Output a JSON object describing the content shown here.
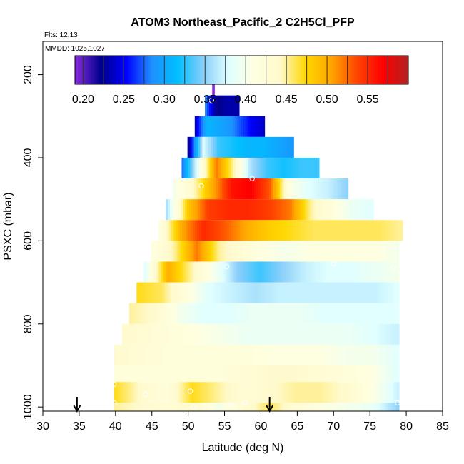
{
  "chart_data": {
    "type": "heatmap",
    "title": "ATOM3 Northeast_Pacific_2 C2H5Cl_PFP",
    "flights_label": "Flts: 12,13",
    "mmdd_label": "MMDD: 1025,1027",
    "xlabel": "Latitude (deg N)",
    "ylabel": "PSXC (mbar)",
    "xlim": [
      30,
      85
    ],
    "ylim": [
      1010,
      120
    ],
    "x_ticks": [
      "30",
      "35",
      "40",
      "45",
      "50",
      "55",
      "60",
      "65",
      "70",
      "75",
      "80",
      "85"
    ],
    "y_ticks": [
      "200",
      "400",
      "600",
      "800",
      "1000"
    ],
    "colorbar": {
      "range": [
        0.19,
        0.6
      ],
      "tick_labels": [
        "0.20",
        "0.25",
        "0.30",
        "0.35",
        "0.40",
        "0.45",
        "0.50",
        "0.55"
      ],
      "colors": [
        "#8a2be2",
        "#00008b",
        "#0000ff",
        "#1e90ff",
        "#00bfff",
        "#87cefa",
        "#e0ffff",
        "#ffffe0",
        "#fffacd",
        "#ffd700",
        "#ffa500",
        "#ff4500",
        "#ff0000",
        "#b22222"
      ]
    },
    "bands": [
      {
        "p0": 220,
        "p1": 250,
        "lat0": 53.3,
        "lat1": 53.6,
        "values": [
          0.19
        ]
      },
      {
        "p0": 250,
        "p1": 300,
        "lat0": 52.3,
        "lat1": 57.0,
        "values": [
          0.28,
          0.22,
          0.23,
          0.23
        ]
      },
      {
        "p0": 300,
        "p1": 350,
        "lat0": 50.9,
        "lat1": 60.5,
        "values": [
          0.24,
          0.31,
          0.3,
          0.29,
          0.27,
          0.25,
          0.24
        ]
      },
      {
        "p0": 350,
        "p1": 400,
        "lat0": 49.9,
        "lat1": 64.5,
        "values": [
          0.22,
          0.38,
          0.33,
          0.32,
          0.31,
          0.31,
          0.3,
          0.29
        ]
      },
      {
        "p0": 400,
        "p1": 450,
        "lat0": 49.1,
        "lat1": 68.0,
        "values": [
          0.28,
          0.4,
          0.52,
          0.45,
          0.36,
          0.33,
          0.32,
          0.33,
          0.33
        ]
      },
      {
        "p0": 450,
        "p1": 500,
        "lat0": 47.9,
        "lat1": 72.0,
        "values": [
          0.4,
          0.44,
          0.5,
          0.56,
          0.57,
          0.53,
          0.41,
          0.38,
          0.37,
          0.35
        ]
      },
      {
        "p0": 500,
        "p1": 550,
        "lat0": 46.9,
        "lat1": 75.5,
        "values": [
          0.36,
          0.48,
          0.54,
          0.55,
          0.55,
          0.54,
          0.52,
          0.45,
          0.42,
          0.39,
          0.38
        ]
      },
      {
        "p0": 550,
        "p1": 600,
        "lat0": 45.9,
        "lat1": 79.5,
        "values": [
          0.41,
          0.5,
          0.55,
          0.53,
          0.5,
          0.48,
          0.47,
          0.46,
          0.46,
          0.46,
          0.46,
          0.45
        ]
      },
      {
        "p0": 600,
        "p1": 650,
        "lat0": 44.9,
        "lat1": 79.0,
        "values": [
          0.41,
          0.45,
          0.52,
          0.45,
          0.43,
          0.41,
          0.4,
          0.41,
          0.41,
          0.41,
          0.41,
          0.4
        ]
      },
      {
        "p0": 650,
        "p1": 700,
        "lat0": 43.9,
        "lat1": 79.0,
        "values": [
          0.38,
          0.5,
          0.45,
          0.4,
          0.35,
          0.33,
          0.35,
          0.37,
          0.38,
          0.38,
          0.39,
          0.4
        ]
      },
      {
        "p0": 700,
        "p1": 750,
        "lat0": 42.9,
        "lat1": 79.0,
        "values": [
          0.47,
          0.46,
          0.42,
          0.38,
          0.37,
          0.36,
          0.37,
          0.37,
          0.37,
          0.37,
          0.37,
          0.38
        ]
      },
      {
        "p0": 750,
        "p1": 800,
        "lat0": 41.9,
        "lat1": 79.0,
        "values": [
          0.45,
          0.44,
          0.4,
          0.38,
          0.38,
          0.39,
          0.39,
          0.39,
          0.38,
          0.38,
          0.38,
          0.38
        ]
      },
      {
        "p0": 800,
        "p1": 850,
        "lat0": 40.9,
        "lat1": 79.0,
        "values": [
          0.44,
          0.43,
          0.42,
          0.41,
          0.4,
          0.39,
          0.39,
          0.39,
          0.39,
          0.39,
          0.38,
          0.37
        ]
      },
      {
        "p0": 850,
        "p1": 900,
        "lat0": 39.8,
        "lat1": 79.0,
        "values": [
          0.44,
          0.43,
          0.42,
          0.42,
          0.42,
          0.42,
          0.41,
          0.41,
          0.41,
          0.4,
          0.4,
          0.38
        ]
      },
      {
        "p0": 900,
        "p1": 940,
        "lat0": 39.8,
        "lat1": 79.0,
        "values": [
          0.42,
          0.42,
          0.42,
          0.42,
          0.42,
          0.43,
          0.44,
          0.44,
          0.43,
          0.42,
          0.41,
          0.38
        ]
      },
      {
        "p0": 940,
        "p1": 990,
        "lat0": 39.8,
        "lat1": 79.0,
        "values": [
          0.47,
          0.44,
          0.42,
          0.47,
          0.45,
          0.43,
          0.44,
          0.45,
          0.45,
          0.44,
          0.41,
          0.37
        ]
      },
      {
        "p0": 990,
        "p1": 1010,
        "lat0": 39.8,
        "lat1": 79.0,
        "values": [
          0.45,
          0.44,
          0.43,
          0.44,
          0.4,
          0.43,
          0.46,
          0.43,
          0.41,
          0.4,
          0.39,
          0.35
        ]
      }
    ],
    "points": [
      {
        "lat": 53.2,
        "p": 262
      },
      {
        "lat": 51.8,
        "p": 468
      },
      {
        "lat": 58.8,
        "p": 450
      },
      {
        "lat": 55.3,
        "p": 662
      },
      {
        "lat": 70.0,
        "p": 655
      },
      {
        "lat": 78.2,
        "p": 665
      },
      {
        "lat": 39.8,
        "p": 945
      },
      {
        "lat": 44.1,
        "p": 970
      },
      {
        "lat": 50.3,
        "p": 962
      },
      {
        "lat": 39.8,
        "p": 990
      },
      {
        "lat": 50.7,
        "p": 1000
      },
      {
        "lat": 56.0,
        "p": 995
      },
      {
        "lat": 57.8,
        "p": 990
      },
      {
        "lat": 78.8,
        "p": 990
      }
    ],
    "arrows": [
      {
        "lat": 34.7
      },
      {
        "lat": 61.2
      }
    ]
  }
}
